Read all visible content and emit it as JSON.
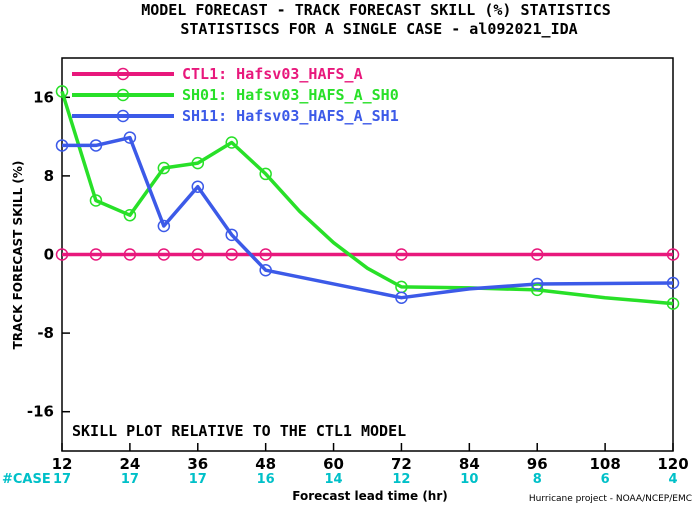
{
  "title_line1": "MODEL FORECAST - TRACK FORECAST SKILL (%) STATISTICS",
  "title_line2": "STATISTISCS FOR A SINGLE CASE - al092021_IDA",
  "annotation": "SKILL PLOT RELATIVE TO THE CTL1 MODEL",
  "case_label": "#CASE",
  "case_counts": [
    "17",
    "17",
    "17",
    "16",
    "14",
    "12",
    "10",
    "8",
    "6",
    "4"
  ],
  "credit": "Hurricane project - NOAA/NCEP/EMC",
  "chart_data": {
    "type": "line",
    "title": "MODEL FORECAST - TRACK FORECAST SKILL (%) STATISTICS",
    "subtitle": "STATISTISCS FOR A SINGLE CASE - al092021_IDA",
    "xlabel": "Forecast lead time (hr)",
    "ylabel": "TRACK FORECAST SKILL (%)",
    "xlim": [
      12,
      120
    ],
    "ylim": [
      -20,
      20
    ],
    "xticks": [
      12,
      24,
      36,
      48,
      60,
      72,
      84,
      96,
      108,
      120
    ],
    "yticks": [
      -16,
      -8,
      0,
      8,
      16
    ],
    "legend_position": "top-left",
    "series": [
      {
        "name": "CTL1: Hafsv03_HAFS_A",
        "color": "#e8187c",
        "points": [
          [
            12,
            0
          ],
          [
            18,
            0
          ],
          [
            24,
            0
          ],
          [
            30,
            0
          ],
          [
            36,
            0
          ],
          [
            42,
            0
          ],
          [
            48,
            0
          ],
          [
            72,
            0
          ],
          [
            96,
            0
          ],
          [
            120,
            0
          ]
        ],
        "markers": [
          12,
          18,
          24,
          30,
          36,
          42,
          48,
          72,
          96,
          120
        ]
      },
      {
        "name": "SH01: Hafsv03_HAFS_A_SH0",
        "color": "#28e028",
        "points": [
          [
            12,
            16.6
          ],
          [
            18,
            5.5
          ],
          [
            24,
            4.0
          ],
          [
            30,
            8.8
          ],
          [
            36,
            9.3
          ],
          [
            42,
            11.4
          ],
          [
            48,
            8.2
          ],
          [
            54,
            4.4
          ],
          [
            60,
            1.2
          ],
          [
            66,
            -1.4
          ],
          [
            72,
            -3.3
          ],
          [
            84,
            -3.4
          ],
          [
            96,
            -3.6
          ],
          [
            108,
            -4.4
          ],
          [
            120,
            -5.0
          ]
        ],
        "markers": [
          12,
          18,
          24,
          30,
          36,
          42,
          48,
          72,
          96,
          120
        ]
      },
      {
        "name": "SH11: Hafsv03_HAFS_A_SH1",
        "color": "#3c5ae8",
        "points": [
          [
            12,
            11.1
          ],
          [
            18,
            11.1
          ],
          [
            24,
            11.9
          ],
          [
            30,
            2.9
          ],
          [
            36,
            6.9
          ],
          [
            42,
            2.0
          ],
          [
            48,
            -1.6
          ],
          [
            72,
            -4.4
          ],
          [
            84,
            -3.5
          ],
          [
            96,
            -3.0
          ],
          [
            120,
            -2.9
          ]
        ],
        "markers": [
          12,
          18,
          24,
          30,
          36,
          42,
          48,
          72,
          96,
          120
        ]
      }
    ]
  }
}
